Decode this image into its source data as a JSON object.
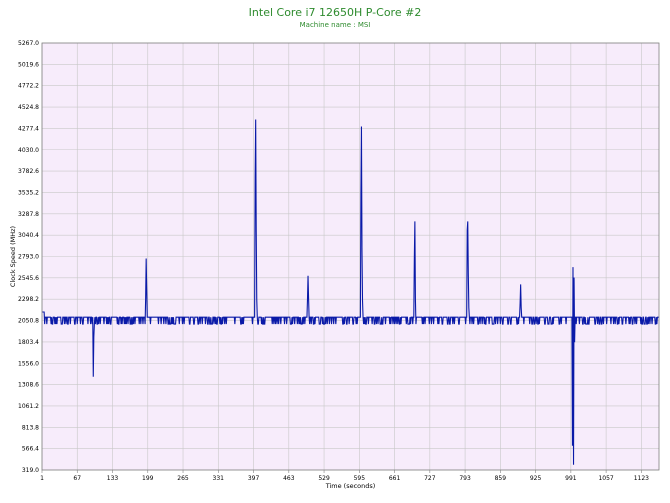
{
  "chart_data": {
    "type": "line",
    "title": "Intel Core i7 12650H P-Core #2",
    "subtitle": "Machine name : MSI",
    "xlabel": "Time (seconds)",
    "ylabel": "Clock Speed (MHz)",
    "xlim": [
      1,
      1156
    ],
    "ylim": [
      319.0,
      5267.0
    ],
    "x_ticks": [
      1,
      67,
      133,
      199,
      265,
      331,
      397,
      463,
      529,
      595,
      661,
      727,
      793,
      859,
      925,
      991,
      1057,
      1123
    ],
    "y_ticks": [
      319.0,
      566.4,
      813.8,
      1061.2,
      1308.6,
      1556.0,
      1803.4,
      2050.8,
      2298.2,
      2545.6,
      2793.0,
      3040.4,
      3287.8,
      3535.2,
      3782.6,
      4030.0,
      4277.4,
      4524.8,
      4772.2,
      5019.6,
      5267.0
    ],
    "grid": true,
    "background_color": "#f7ecfb",
    "grid_color": "#c8c8c8",
    "line_color": "#0a1aa8",
    "series": [
      {
        "baseline": 2090,
        "dip_value": 2010,
        "spikes": [
          {
            "x": 97,
            "y": 1400
          },
          {
            "x": 98,
            "y": 1860
          },
          {
            "x": 195,
            "y": 2300
          },
          {
            "x": 196,
            "y": 2770
          },
          {
            "x": 197,
            "y": 2420
          },
          {
            "x": 400,
            "y": 3700
          },
          {
            "x": 401,
            "y": 4380
          },
          {
            "x": 402,
            "y": 3100
          },
          {
            "x": 403,
            "y": 2300
          },
          {
            "x": 498,
            "y": 2300
          },
          {
            "x": 499,
            "y": 2570
          },
          {
            "x": 500,
            "y": 2310
          },
          {
            "x": 598,
            "y": 3520
          },
          {
            "x": 599,
            "y": 4300
          },
          {
            "x": 600,
            "y": 2850
          },
          {
            "x": 601,
            "y": 2280
          },
          {
            "x": 698,
            "y": 2780
          },
          {
            "x": 699,
            "y": 3200
          },
          {
            "x": 700,
            "y": 2300
          },
          {
            "x": 797,
            "y": 3100
          },
          {
            "x": 798,
            "y": 3200
          },
          {
            "x": 799,
            "y": 2600
          },
          {
            "x": 800,
            "y": 2200
          },
          {
            "x": 896,
            "y": 2250
          },
          {
            "x": 897,
            "y": 2470
          },
          {
            "x": 898,
            "y": 2200
          },
          {
            "x": 994,
            "y": 600
          },
          {
            "x": 995,
            "y": 2670
          },
          {
            "x": 996,
            "y": 380
          },
          {
            "x": 997,
            "y": 2550
          },
          {
            "x": 998,
            "y": 1800
          }
        ]
      }
    ]
  }
}
